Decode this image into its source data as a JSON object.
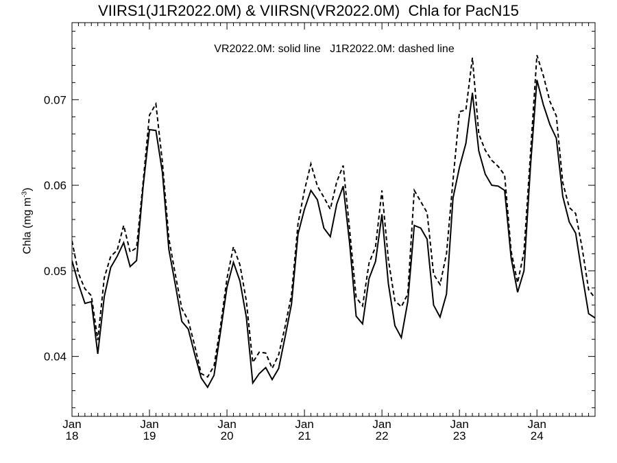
{
  "chart_data": {
    "type": "line",
    "title": "VIIRS1(J1R2022.0M) & VIIRSN(VR2022.0M)  Chla for PacN15",
    "annotation": "VR2022.0M: solid line   J1R2022.0M: dashed line",
    "ylabel": "Chla (mg m",
    "ylabel_superscript": "-3",
    "ylabel_suffix": ")",
    "xlim": [
      2018.0,
      2024.75
    ],
    "ylim": [
      0.033,
      0.079
    ],
    "y_ticks": [
      0.04,
      0.05,
      0.06,
      0.07
    ],
    "y_tick_labels": [
      "0.04",
      "0.05",
      "0.06",
      "0.07"
    ],
    "x_ticks": [
      {
        "value": 2018,
        "month": "Jan",
        "year": "18"
      },
      {
        "value": 2019,
        "month": "Jan",
        "year": "19"
      },
      {
        "value": 2020,
        "month": "Jan",
        "year": "20"
      },
      {
        "value": 2021,
        "month": "Jan",
        "year": "21"
      },
      {
        "value": 2022,
        "month": "Jan",
        "year": "22"
      },
      {
        "value": 2023,
        "month": "Jan",
        "year": "23"
      },
      {
        "value": 2024,
        "month": "Jan",
        "year": "24"
      }
    ],
    "grid": false,
    "series": [
      {
        "name": "VR2022.0M",
        "style": "solid",
        "color": "#000000",
        "x": [
          2018.0,
          2018.083,
          2018.167,
          2018.25,
          2018.333,
          2018.417,
          2018.5,
          2018.583,
          2018.667,
          2018.75,
          2018.833,
          2018.917,
          2019.0,
          2019.083,
          2019.167,
          2019.25,
          2019.333,
          2019.417,
          2019.5,
          2019.583,
          2019.667,
          2019.75,
          2019.833,
          2019.917,
          2020.0,
          2020.083,
          2020.167,
          2020.25,
          2020.333,
          2020.417,
          2020.5,
          2020.583,
          2020.667,
          2020.75,
          2020.833,
          2020.917,
          2021.0,
          2021.083,
          2021.167,
          2021.25,
          2021.333,
          2021.417,
          2021.5,
          2021.583,
          2021.667,
          2021.75,
          2021.833,
          2021.917,
          2022.0,
          2022.083,
          2022.167,
          2022.25,
          2022.333,
          2022.417,
          2022.5,
          2022.583,
          2022.667,
          2022.75,
          2022.833,
          2022.917,
          2023.0,
          2023.083,
          2023.167,
          2023.25,
          2023.333,
          2023.417,
          2023.5,
          2023.583,
          2023.667,
          2023.75,
          2023.833,
          2023.917,
          2024.0,
          2024.083,
          2024.167,
          2024.25,
          2024.333,
          2024.417,
          2024.5,
          2024.583,
          2024.667,
          2024.75
        ],
        "y": [
          0.0512,
          0.0485,
          0.0462,
          0.0464,
          0.0403,
          0.047,
          0.0504,
          0.0517,
          0.0533,
          0.0505,
          0.0512,
          0.0598,
          0.0665,
          0.0664,
          0.0615,
          0.0525,
          0.0484,
          0.0441,
          0.0432,
          0.0403,
          0.0375,
          0.0364,
          0.0378,
          0.0429,
          0.0481,
          0.051,
          0.0488,
          0.0446,
          0.0369,
          0.038,
          0.0387,
          0.0373,
          0.0386,
          0.0423,
          0.0461,
          0.0543,
          0.0572,
          0.0594,
          0.0583,
          0.055,
          0.054,
          0.0578,
          0.0599,
          0.0532,
          0.0447,
          0.0438,
          0.0491,
          0.0511,
          0.0566,
          0.0485,
          0.0436,
          0.0422,
          0.0464,
          0.0553,
          0.055,
          0.0537,
          0.046,
          0.0446,
          0.0473,
          0.0585,
          0.0621,
          0.0649,
          0.0708,
          0.064,
          0.0613,
          0.06,
          0.0599,
          0.0594,
          0.0515,
          0.0475,
          0.05,
          0.0622,
          0.0723,
          0.0694,
          0.0671,
          0.0655,
          0.0587,
          0.0557,
          0.0544,
          0.0496,
          0.045,
          0.0445
        ]
      },
      {
        "name": "J1R2022.0M",
        "style": "dashed",
        "color": "#000000",
        "x": [
          2018.0,
          2018.083,
          2018.167,
          2018.25,
          2018.333,
          2018.417,
          2018.5,
          2018.583,
          2018.667,
          2018.75,
          2018.833,
          2018.917,
          2019.0,
          2019.083,
          2019.167,
          2019.25,
          2019.333,
          2019.417,
          2019.5,
          2019.583,
          2019.667,
          2019.75,
          2019.833,
          2019.917,
          2020.0,
          2020.083,
          2020.167,
          2020.25,
          2020.333,
          2020.417,
          2020.5,
          2020.583,
          2020.667,
          2020.75,
          2020.833,
          2020.917,
          2021.0,
          2021.083,
          2021.167,
          2021.25,
          2021.333,
          2021.417,
          2021.5,
          2021.583,
          2021.667,
          2021.75,
          2021.833,
          2021.917,
          2022.0,
          2022.083,
          2022.167,
          2022.25,
          2022.333,
          2022.417,
          2022.5,
          2022.583,
          2022.667,
          2022.75,
          2022.833,
          2022.917,
          2023.0,
          2023.083,
          2023.167,
          2023.25,
          2023.333,
          2023.417,
          2023.5,
          2023.583,
          2023.667,
          2023.75,
          2023.833,
          2023.917,
          2024.0,
          2024.083,
          2024.167,
          2024.25,
          2024.333,
          2024.417,
          2024.5,
          2024.583,
          2024.667,
          2024.75
        ],
        "y": [
          0.0535,
          0.0497,
          0.0479,
          0.0471,
          0.0419,
          0.0492,
          0.0517,
          0.0524,
          0.0553,
          0.0522,
          0.0527,
          0.0603,
          0.0682,
          0.0695,
          0.0627,
          0.0538,
          0.0496,
          0.0456,
          0.0442,
          0.0413,
          0.038,
          0.0376,
          0.0389,
          0.0436,
          0.0491,
          0.0528,
          0.0507,
          0.0465,
          0.0393,
          0.0405,
          0.0404,
          0.0386,
          0.0402,
          0.0435,
          0.0472,
          0.0555,
          0.0594,
          0.0625,
          0.0599,
          0.0586,
          0.0572,
          0.0604,
          0.0623,
          0.0548,
          0.0469,
          0.0459,
          0.0509,
          0.0528,
          0.0594,
          0.0513,
          0.0465,
          0.0458,
          0.0473,
          0.0594,
          0.0581,
          0.0568,
          0.0496,
          0.0484,
          0.052,
          0.0606,
          0.0686,
          0.0688,
          0.0749,
          0.066,
          0.0641,
          0.0629,
          0.0622,
          0.0612,
          0.0523,
          0.0486,
          0.0522,
          0.0637,
          0.0752,
          0.0728,
          0.0698,
          0.0681,
          0.0603,
          0.0574,
          0.0567,
          0.0527,
          0.0478,
          0.0468
        ]
      }
    ]
  }
}
